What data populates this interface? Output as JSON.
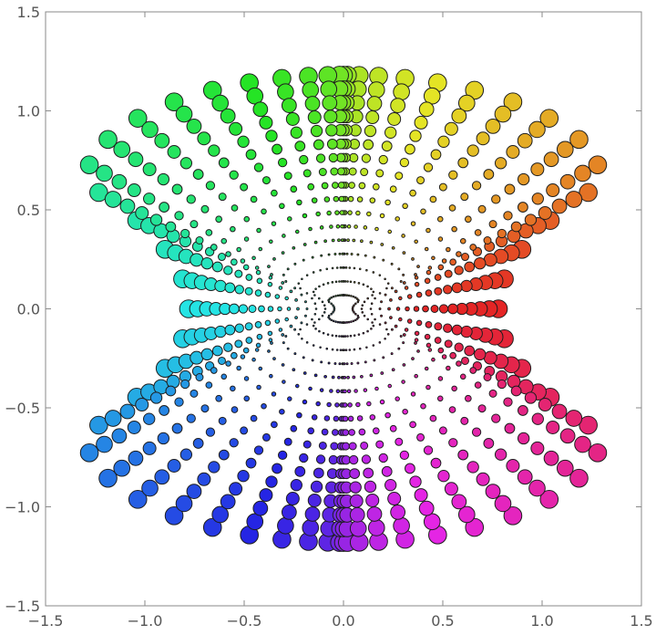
{
  "chart_data": {
    "type": "scatter",
    "title": "",
    "xlabel": "",
    "ylabel": "",
    "xlim": [
      -1.5,
      1.5
    ],
    "ylim": [
      -1.5,
      1.5
    ],
    "grid": false,
    "x_ticks": [
      -1.5,
      -1.0,
      -0.5,
      0.0,
      0.5,
      1.0,
      1.5
    ],
    "y_ticks": [
      -1.5,
      -1.0,
      -0.5,
      0.0,
      0.5,
      1.0,
      1.5
    ],
    "x_tick_labels": [
      "−1.5",
      "−1.0",
      "−0.5",
      "0.0",
      "0.5",
      "1.0",
      "1.5"
    ],
    "y_tick_labels": [
      "−1.5",
      "−1.0",
      "−0.5",
      "0.0",
      "0.5",
      "1.0",
      "1.5"
    ],
    "points": {
      "description": "polar grid of points mapped by hue = angle, size ~ radius",
      "angular_count": 60,
      "radial_count": 17,
      "max_point_radius_units": 0.045,
      "boundary": {
        "top_y": 1.18,
        "bottom_y": -1.18,
        "corner_x": 1.3,
        "corner_y": 0.63,
        "waist_x": 0.78
      }
    },
    "colors": {
      "frame": "#8a8a8a",
      "point_stroke": "#1e1e1e",
      "background": "#ffffff"
    }
  }
}
